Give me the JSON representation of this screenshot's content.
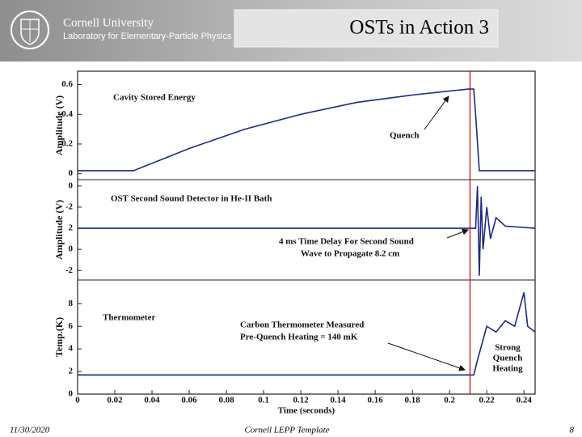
{
  "header": {
    "logo_lines": [
      "Cornell University",
      "Laboratory for Elementary-Particle Physics"
    ],
    "title": "OSTs in Action 3"
  },
  "chart_data": [
    {
      "type": "line",
      "y_label": "Amplitude (V)",
      "annotations": [
        "Cavity Stored Energy",
        "Quench"
      ],
      "xlim": [
        0,
        0.246
      ],
      "ylim": [
        -0.04,
        0.69
      ],
      "yticks": [
        0,
        0.2,
        0.4,
        0.6
      ],
      "series": [
        {
          "color": "#1c2a80",
          "x": [
            0,
            0.03,
            0.06,
            0.09,
            0.12,
            0.15,
            0.18,
            0.21,
            0.213,
            0.214,
            0.216,
            0.246
          ],
          "values": [
            0.02,
            0.02,
            0.17,
            0.3,
            0.4,
            0.48,
            0.53,
            0.57,
            0.57,
            0.4,
            0.02,
            0.02
          ]
        }
      ]
    },
    {
      "type": "line",
      "y_label": "Amplitude (V)",
      "annotations": [
        "OST Second Sound Detector in He-II Bath",
        "4 ms Time Delay For Second Sound",
        "Wave to Propagate 8.2 cm"
      ],
      "xlim": [
        0,
        0.246
      ],
      "ylim": [
        -2.9,
        6.6
      ],
      "yticks": [
        {
          "value": 6,
          "label": "0"
        },
        {
          "value": 4,
          "label": "-2"
        },
        2,
        0,
        -2
      ],
      "series": [
        {
          "color": "#1c2a80",
          "x": [
            0,
            0.214,
            0.215,
            0.216,
            0.217,
            0.218,
            0.22,
            0.222,
            0.225,
            0.23,
            0.246
          ],
          "values": [
            2,
            2,
            6,
            -2.5,
            5,
            0,
            4,
            1,
            3,
            2.2,
            2
          ]
        }
      ]
    },
    {
      "type": "line",
      "y_label": "Temp.(K)",
      "x_label": "Time (seconds)",
      "annotations": [
        "Thermometer",
        "Carbon Thermometer Measured",
        "Pre-Quench Heating = 140 mK",
        "Strong",
        "Quench",
        "Heating"
      ],
      "xlim": [
        0,
        0.246
      ],
      "ylim": [
        0,
        10.1
      ],
      "yticks": [
        0,
        2,
        4,
        6,
        8
      ],
      "xticks": [
        0,
        0.02,
        0.04,
        0.06,
        0.08,
        0.1,
        0.12,
        0.14,
        0.16,
        0.18,
        0.2,
        0.22,
        0.24
      ],
      "series": [
        {
          "color": "#1c2a80",
          "x": [
            0,
            0.213,
            0.215,
            0.22,
            0.225,
            0.23,
            0.235,
            0.24,
            0.242,
            0.246
          ],
          "values": [
            1.7,
            1.7,
            3,
            6,
            5.5,
            6.5,
            6,
            9,
            6,
            5.5
          ]
        }
      ]
    }
  ],
  "quench_line": {
    "x": 0.211,
    "color": "#c00000"
  },
  "footer": {
    "date": "11/30/2020",
    "template": "Cornell LEPP Template",
    "page": "8"
  }
}
